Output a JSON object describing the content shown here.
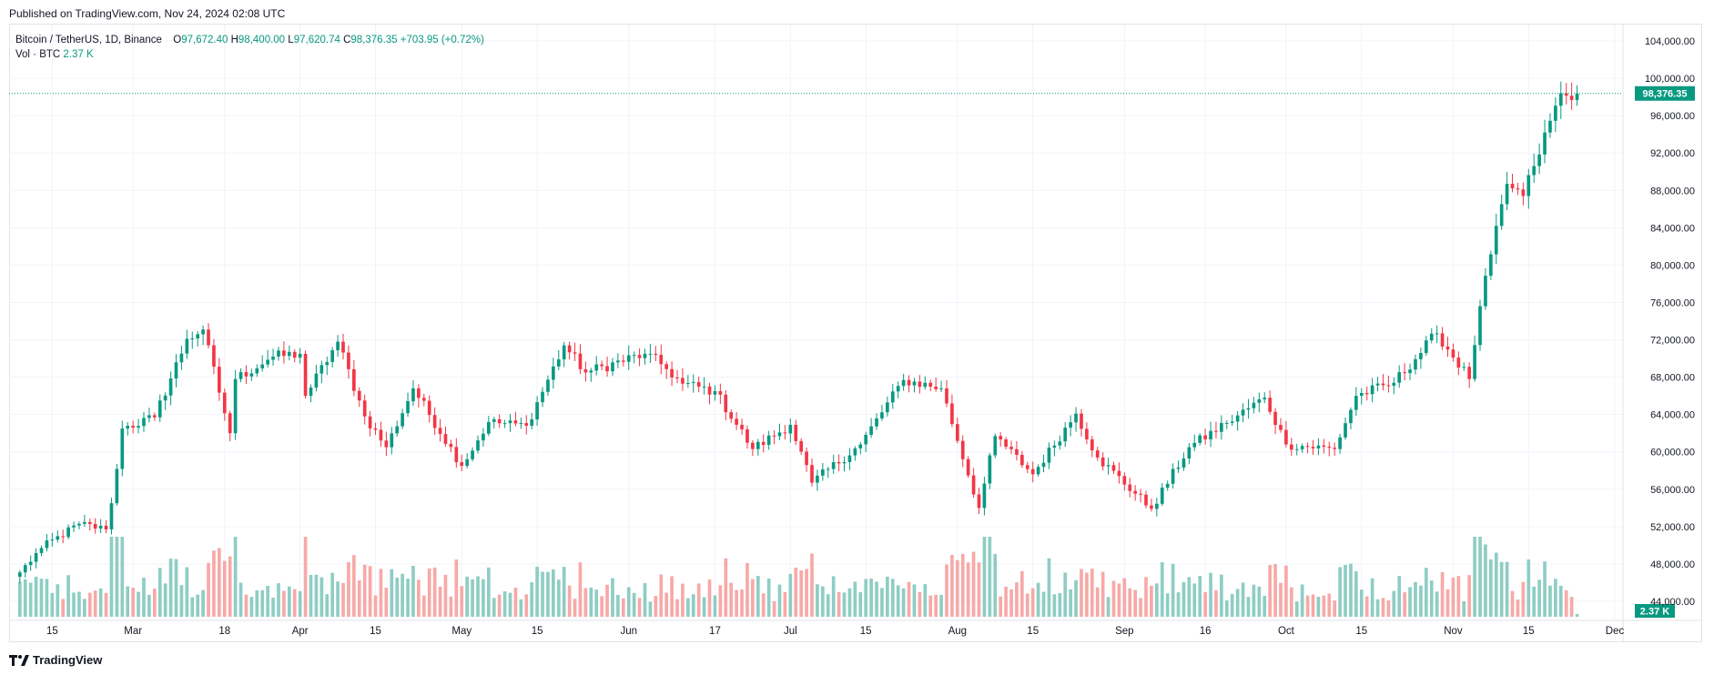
{
  "header": {
    "published": "Published on TradingView.com, Nov 24, 2024 02:08 UTC"
  },
  "legend": {
    "symbol": "Bitcoin / TetherUS, 1D, Binance",
    "o_label": "O",
    "o": "97,672.40",
    "h_label": "H",
    "h": "98,400.00",
    "l_label": "L",
    "l": "97,620.74",
    "c_label": "C",
    "c": "98,376.35",
    "change": "+703.95 (+0.72%)",
    "vol_label": "Vol · BTC",
    "vol": "2.37 K"
  },
  "footer": {
    "logo_text": "TradingView"
  },
  "colors": {
    "up": "#089981",
    "down": "#f23645",
    "up_vol": "#8ecdc4",
    "down_vol": "#f7a9a7"
  },
  "chart_data": {
    "type": "candlestick",
    "symbol": "Bitcoin / TetherUS",
    "interval": "1D",
    "exchange": "Binance",
    "y_axis": {
      "min": 44000,
      "max": 104000,
      "ticks": [
        "104,000.00",
        "100,000.00",
        "96,000.00",
        "92,000.00",
        "88,000.00",
        "84,000.00",
        "80,000.00",
        "76,000.00",
        "72,000.00",
        "68,000.00",
        "64,000.00",
        "60,000.00",
        "56,000.00",
        "52,000.00",
        "48,000.00",
        "44,000.00"
      ]
    },
    "x_axis": {
      "ticks": [
        {
          "label": "15",
          "date": "2024-02-15"
        },
        {
          "label": "Mar",
          "date": "2024-03-01"
        },
        {
          "label": "18",
          "date": "2024-03-18"
        },
        {
          "label": "Apr",
          "date": "2024-04-01"
        },
        {
          "label": "15",
          "date": "2024-04-15"
        },
        {
          "label": "May",
          "date": "2024-05-01"
        },
        {
          "label": "15",
          "date": "2024-05-15"
        },
        {
          "label": "Jun",
          "date": "2024-06-01"
        },
        {
          "label": "17",
          "date": "2024-06-17"
        },
        {
          "label": "Jul",
          "date": "2024-07-01"
        },
        {
          "label": "15",
          "date": "2024-07-15"
        },
        {
          "label": "Aug",
          "date": "2024-08-01"
        },
        {
          "label": "15",
          "date": "2024-08-15"
        },
        {
          "label": "Sep",
          "date": "2024-09-01"
        },
        {
          "label": "16",
          "date": "2024-09-16"
        },
        {
          "label": "Oct",
          "date": "2024-10-01"
        },
        {
          "label": "15",
          "date": "2024-10-15"
        },
        {
          "label": "Nov",
          "date": "2024-11-01"
        },
        {
          "label": "15",
          "date": "2024-11-15"
        },
        {
          "label": "Dec",
          "date": "2024-12-01"
        }
      ]
    },
    "last_price_label": "98,376.35",
    "last_price": 98376.35,
    "volume_label": "2.37 K",
    "close_anchors": [
      {
        "date": "2024-02-09",
        "close": 47100
      },
      {
        "date": "2024-02-13",
        "close": 49700
      },
      {
        "date": "2024-02-20",
        "close": 52300
      },
      {
        "date": "2024-02-25",
        "close": 51700
      },
      {
        "date": "2024-02-26",
        "close": 54500
      },
      {
        "date": "2024-02-28",
        "close": 62500
      },
      {
        "date": "2024-03-05",
        "close": 63700
      },
      {
        "date": "2024-03-11",
        "close": 72100
      },
      {
        "date": "2024-03-14",
        "close": 73100
      },
      {
        "date": "2024-03-19",
        "close": 62000
      },
      {
        "date": "2024-03-20",
        "close": 67800
      },
      {
        "date": "2024-03-27",
        "close": 70200
      },
      {
        "date": "2024-04-01",
        "close": 70500
      },
      {
        "date": "2024-04-02",
        "close": 66000
      },
      {
        "date": "2024-04-08",
        "close": 71800
      },
      {
        "date": "2024-04-13",
        "close": 63800
      },
      {
        "date": "2024-04-17",
        "close": 60500
      },
      {
        "date": "2024-04-22",
        "close": 66800
      },
      {
        "date": "2024-05-01",
        "close": 58500
      },
      {
        "date": "2024-05-06",
        "close": 63200
      },
      {
        "date": "2024-05-13",
        "close": 62800
      },
      {
        "date": "2024-05-20",
        "close": 71400
      },
      {
        "date": "2024-05-24",
        "close": 68500
      },
      {
        "date": "2024-06-04",
        "close": 70500
      },
      {
        "date": "2024-06-07",
        "close": 69400
      },
      {
        "date": "2024-06-11",
        "close": 67300
      },
      {
        "date": "2024-06-17",
        "close": 66500
      },
      {
        "date": "2024-06-24",
        "close": 60300
      },
      {
        "date": "2024-07-01",
        "close": 62900
      },
      {
        "date": "2024-07-05",
        "close": 56700
      },
      {
        "date": "2024-07-14",
        "close": 60800
      },
      {
        "date": "2024-07-22",
        "close": 67700
      },
      {
        "date": "2024-07-29",
        "close": 66800
      },
      {
        "date": "2024-08-05",
        "close": 54000
      },
      {
        "date": "2024-08-08",
        "close": 61700
      },
      {
        "date": "2024-08-15",
        "close": 57600
      },
      {
        "date": "2024-08-23",
        "close": 64100
      },
      {
        "date": "2024-08-27",
        "close": 59400
      },
      {
        "date": "2024-09-06",
        "close": 53900
      },
      {
        "date": "2024-09-13",
        "close": 60500
      },
      {
        "date": "2024-09-20",
        "close": 63100
      },
      {
        "date": "2024-09-27",
        "close": 65800
      },
      {
        "date": "2024-10-01",
        "close": 60800
      },
      {
        "date": "2024-10-10",
        "close": 60300
      },
      {
        "date": "2024-10-14",
        "close": 66000
      },
      {
        "date": "2024-10-21",
        "close": 67400
      },
      {
        "date": "2024-10-29",
        "close": 72700
      },
      {
        "date": "2024-11-04",
        "close": 67800
      },
      {
        "date": "2024-11-06",
        "close": 75600
      },
      {
        "date": "2024-11-11",
        "close": 88700
      },
      {
        "date": "2024-11-14",
        "close": 87400
      },
      {
        "date": "2024-11-16",
        "close": 90600
      },
      {
        "date": "2024-11-21",
        "close": 98400
      },
      {
        "date": "2024-11-23",
        "close": 97672.4
      },
      {
        "date": "2024-11-24",
        "close": 98376.35
      }
    ]
  }
}
